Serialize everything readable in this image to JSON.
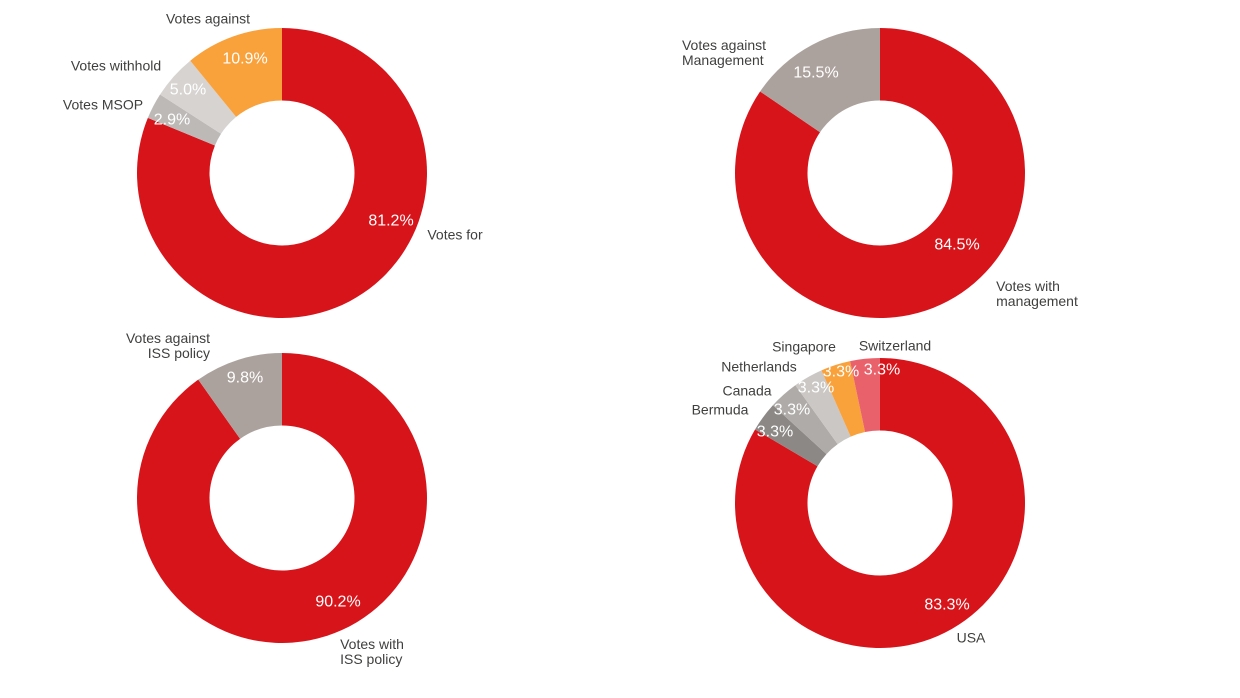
{
  "chart_data": [
    {
      "type": "pie",
      "variant": "donut",
      "position": "top-left",
      "title": "",
      "start_angle_deg": 0,
      "direction": "clockwise",
      "inner_radius_ratio": 0.5,
      "slices": [
        {
          "label": "Votes for",
          "value": 81.2,
          "pct_label": "81.2%",
          "color": "#D8141B"
        },
        {
          "label": "Votes MSOP",
          "value": 2.9,
          "pct_label": "2.9%",
          "color": "#BDB9B7"
        },
        {
          "label": "Votes withhold",
          "value": 5.0,
          "pct_label": "5.0%",
          "color": "#D6D3D1"
        },
        {
          "label": "Votes against",
          "value": 10.9,
          "pct_label": "10.9%",
          "color": "#F9A13B"
        }
      ]
    },
    {
      "type": "pie",
      "variant": "donut",
      "position": "top-right",
      "title": "",
      "start_angle_deg": 0,
      "direction": "clockwise",
      "inner_radius_ratio": 0.5,
      "slices": [
        {
          "label": "Votes with management",
          "label_lines": [
            "Votes with",
            "management"
          ],
          "value": 84.5,
          "pct_label": "84.5%",
          "color": "#D8141B"
        },
        {
          "label": "Votes against Management",
          "label_lines": [
            "Votes against",
            "Management"
          ],
          "value": 15.5,
          "pct_label": "15.5%",
          "color": "#ACA29D"
        }
      ]
    },
    {
      "type": "pie",
      "variant": "donut",
      "position": "bottom-left",
      "title": "",
      "start_angle_deg": 0,
      "direction": "clockwise",
      "inner_radius_ratio": 0.5,
      "slices": [
        {
          "label": "Votes with ISS policy",
          "label_lines": [
            "Votes with",
            "ISS policy"
          ],
          "value": 90.2,
          "pct_label": "90.2%",
          "color": "#D8141B"
        },
        {
          "label": "Votes against ISS policy",
          "label_lines": [
            "Votes against",
            "ISS policy"
          ],
          "value": 9.8,
          "pct_label": "9.8%",
          "color": "#ACA29D"
        }
      ]
    },
    {
      "type": "pie",
      "variant": "donut",
      "position": "bottom-right",
      "title": "",
      "start_angle_deg": 0,
      "direction": "clockwise",
      "inner_radius_ratio": 0.5,
      "slices": [
        {
          "label": "USA",
          "value": 83.3,
          "pct_label": "83.3%",
          "color": "#D8141B"
        },
        {
          "label": "Bermuda",
          "value": 3.3,
          "pct_label": "3.3%",
          "color": "#8B8886"
        },
        {
          "label": "Canada",
          "value": 3.3,
          "pct_label": "3.3%",
          "color": "#AFABA9"
        },
        {
          "label": "Netherlands",
          "value": 3.3,
          "pct_label": "3.3%",
          "color": "#CAC7C5"
        },
        {
          "label": "Singapore",
          "value": 3.3,
          "pct_label": "3.3%",
          "color": "#F9A13B"
        },
        {
          "label": "Switzerland",
          "value": 3.3,
          "pct_label": "3.3%",
          "color": "#E9626B"
        }
      ]
    }
  ]
}
